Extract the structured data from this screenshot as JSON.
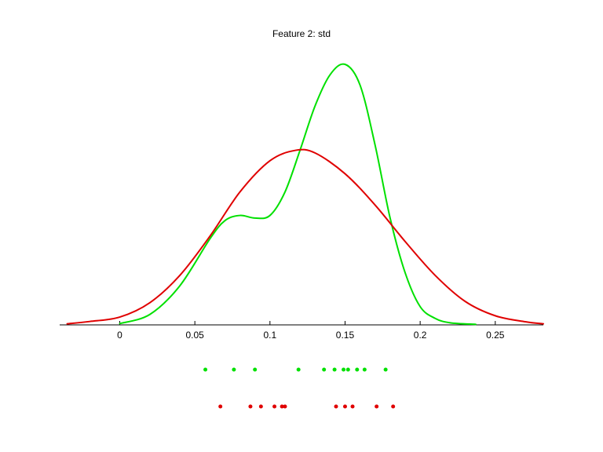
{
  "chart_data": {
    "type": "line",
    "title": "Feature 2: std",
    "xlabel": "",
    "ylabel": "",
    "xlim": [
      -0.04,
      0.282
    ],
    "ylim": [
      0,
      1
    ],
    "grid": false,
    "x_ticks": [
      0,
      0.05,
      0.1,
      0.15,
      0.2,
      0.25
    ],
    "x_tick_labels": [
      "0",
      "0.05",
      "0.1",
      "0.15",
      "0.2",
      "0.25"
    ],
    "series": [
      {
        "color": "#00e000",
        "x": [
          0,
          0.02,
          0.04,
          0.06,
          0.07,
          0.08,
          0.09,
          0.1,
          0.11,
          0.12,
          0.13,
          0.14,
          0.15,
          0.16,
          0.17,
          0.18,
          0.19,
          0.2,
          0.21,
          0.22,
          0.237
        ],
        "values": [
          0.005,
          0.04,
          0.15,
          0.33,
          0.4,
          0.42,
          0.41,
          0.42,
          0.51,
          0.67,
          0.84,
          0.96,
          1.0,
          0.92,
          0.69,
          0.41,
          0.2,
          0.07,
          0.025,
          0.008,
          0.002
        ]
      },
      {
        "color": "#e00000",
        "x": [
          -0.035,
          -0.02,
          0,
          0.02,
          0.04,
          0.06,
          0.08,
          0.1,
          0.117,
          0.13,
          0.15,
          0.17,
          0.19,
          0.21,
          0.23,
          0.25,
          0.27,
          0.282
        ],
        "values": [
          0.004,
          0.013,
          0.03,
          0.085,
          0.19,
          0.34,
          0.51,
          0.63,
          0.67,
          0.66,
          0.58,
          0.46,
          0.32,
          0.19,
          0.09,
          0.035,
          0.012,
          0.004
        ]
      }
    ],
    "samples": [
      {
        "color": "#00e000",
        "x": [
          0.057,
          0.076,
          0.09,
          0.119,
          0.136,
          0.143,
          0.149,
          0.152,
          0.158,
          0.163,
          0.177
        ]
      },
      {
        "color": "#e00000",
        "x": [
          0.067,
          0.087,
          0.094,
          0.103,
          0.108,
          0.11,
          0.144,
          0.15,
          0.155,
          0.171,
          0.182
        ]
      }
    ]
  }
}
